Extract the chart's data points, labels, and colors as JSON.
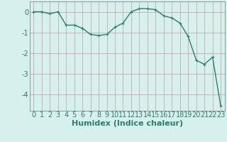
{
  "x": [
    0,
    1,
    2,
    3,
    4,
    5,
    6,
    7,
    8,
    9,
    10,
    11,
    12,
    13,
    14,
    15,
    16,
    17,
    18,
    19,
    20,
    21,
    22,
    23
  ],
  "y": [
    0.0,
    0.0,
    -0.1,
    0.0,
    -0.65,
    -0.65,
    -0.8,
    -1.1,
    -1.15,
    -1.1,
    -0.75,
    -0.55,
    0.0,
    0.15,
    0.15,
    0.1,
    -0.2,
    -0.3,
    -0.55,
    -1.2,
    -2.35,
    -2.55,
    -2.2,
    -4.55
  ],
  "line_color": "#2e7d6e",
  "marker": "+",
  "marker_size": 3,
  "bg_color": "#d5f0ed",
  "grid_color": "#c8a8a8",
  "xlabel": "Humidex (Indice chaleur)",
  "xlabel_fontsize": 8,
  "tick_fontsize": 7,
  "ylim": [
    -4.8,
    0.5
  ],
  "xlim": [
    -0.5,
    23.5
  ],
  "yticks": [
    0,
    -1,
    -2,
    -3,
    -4
  ],
  "xticks": [
    0,
    1,
    2,
    3,
    4,
    5,
    6,
    7,
    8,
    9,
    10,
    11,
    12,
    13,
    14,
    15,
    16,
    17,
    18,
    19,
    20,
    21,
    22,
    23
  ],
  "spine_color": "#888888",
  "linewidth": 1.0,
  "markeredgewidth": 0.8
}
